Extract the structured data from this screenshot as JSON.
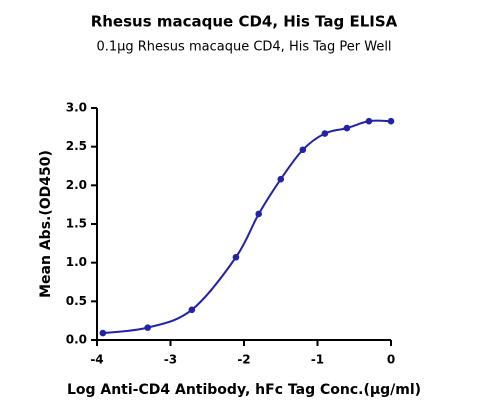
{
  "chart_data": {
    "type": "line",
    "title": "Rhesus macaque CD4, His Tag ELISA",
    "subtitle": "0.1μg Rhesus macaque CD4, His Tag Per Well",
    "x_label": "Log Anti-CD4 Antibody, hFc Tag Conc.(μg/ml)",
    "y_label": "Mean Abs.(OD450)",
    "x": [
      -3.92,
      -3.31,
      -2.71,
      -2.11,
      -1.8,
      -1.5,
      -1.2,
      -0.9,
      -0.6,
      -0.3,
      0
    ],
    "series": [
      {
        "name": "Rhesus macaque CD4, His Tag",
        "color": "#2323a6",
        "values": [
          0.09,
          0.16,
          0.39,
          1.07,
          1.63,
          2.08,
          2.46,
          2.67,
          2.74,
          2.83,
          2.83
        ]
      }
    ],
    "xlim": [
      -4,
      0
    ],
    "xticks": [
      -4,
      -3,
      -2,
      -1,
      0
    ],
    "ylim": [
      0,
      3
    ],
    "yticks": [
      {
        "value": 0,
        "label": "0.0"
      },
      {
        "value": 0.5,
        "label": "0.5"
      },
      {
        "value": 1,
        "label": "1.0"
      },
      {
        "value": 1.5,
        "label": "1.5"
      },
      {
        "value": 2,
        "label": "2.0"
      },
      {
        "value": 2.5,
        "label": "2.5"
      },
      {
        "value": 3,
        "label": "3.0"
      }
    ],
    "markers": true,
    "grid": false
  }
}
